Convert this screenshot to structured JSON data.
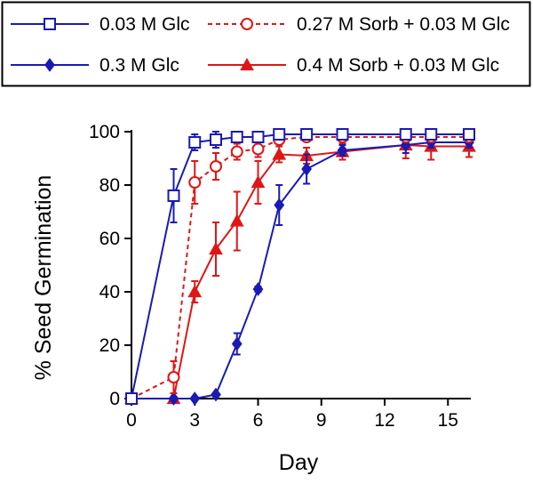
{
  "chart_data": {
    "type": "line",
    "title": "",
    "xlabel": "Day",
    "ylabel": "% Seed Germination",
    "xlim": [
      0,
      16
    ],
    "ylim": [
      0,
      100
    ],
    "xticks": [
      0,
      3,
      6,
      9,
      12,
      15
    ],
    "yticks": [
      0,
      20,
      40,
      60,
      80,
      100
    ],
    "grid": false,
    "legend_position": "top",
    "series": [
      {
        "name": "0.03 M Glc",
        "color": "#1a1ab4",
        "line": "solid",
        "marker": "square-open",
        "x": [
          0,
          2,
          3,
          4,
          5,
          6,
          7,
          8.3,
          10,
          13,
          14.2,
          16
        ],
        "y": [
          0,
          76,
          96,
          97,
          98,
          98,
          99,
          99,
          99,
          99,
          99,
          99
        ],
        "err": [
          0,
          10,
          3,
          3,
          1.5,
          1,
          1,
          1,
          1,
          1,
          1,
          1
        ]
      },
      {
        "name": "0.3 M Glc",
        "color": "#1a1ab4",
        "line": "solid",
        "marker": "diamond-filled",
        "x": [
          0,
          2,
          3,
          4,
          5,
          6,
          7,
          8.3,
          10,
          13,
          14.2,
          16
        ],
        "y": [
          0,
          0,
          0,
          1.5,
          20.5,
          41,
          72.5,
          86,
          93,
          95,
          96,
          96
        ],
        "err": [
          0,
          0,
          0,
          0.5,
          4,
          1,
          7.5,
          5.5,
          2,
          3,
          2,
          2
        ]
      },
      {
        "name": "0.27 M Sorb + 0.03 M Glc",
        "color": "#e01616",
        "line": "dashed",
        "marker": "circle-open",
        "x": [
          0,
          2,
          3,
          4,
          5,
          6,
          7,
          8.3,
          10,
          13,
          14.2,
          16
        ],
        "y": [
          0,
          8,
          81,
          87,
          92.5,
          93.5,
          97,
          98,
          98,
          98,
          98,
          98
        ],
        "err": [
          0,
          6,
          8,
          5,
          3,
          3,
          1.5,
          1,
          1,
          1,
          1,
          1
        ]
      },
      {
        "name": "0.4 M Sorb + 0.03 M Glc",
        "color": "#e01616",
        "line": "solid",
        "marker": "triangle-filled",
        "x": [
          0,
          2,
          3,
          4,
          5,
          6,
          7,
          8.3,
          10,
          13,
          14.2,
          16
        ],
        "y": [
          0,
          0,
          40,
          56,
          66.5,
          81,
          91.5,
          91,
          92.5,
          95,
          94.5,
          94.5
        ],
        "err": [
          0,
          0,
          4,
          10,
          11,
          8,
          3,
          3,
          3,
          5,
          5,
          4
        ]
      }
    ]
  }
}
